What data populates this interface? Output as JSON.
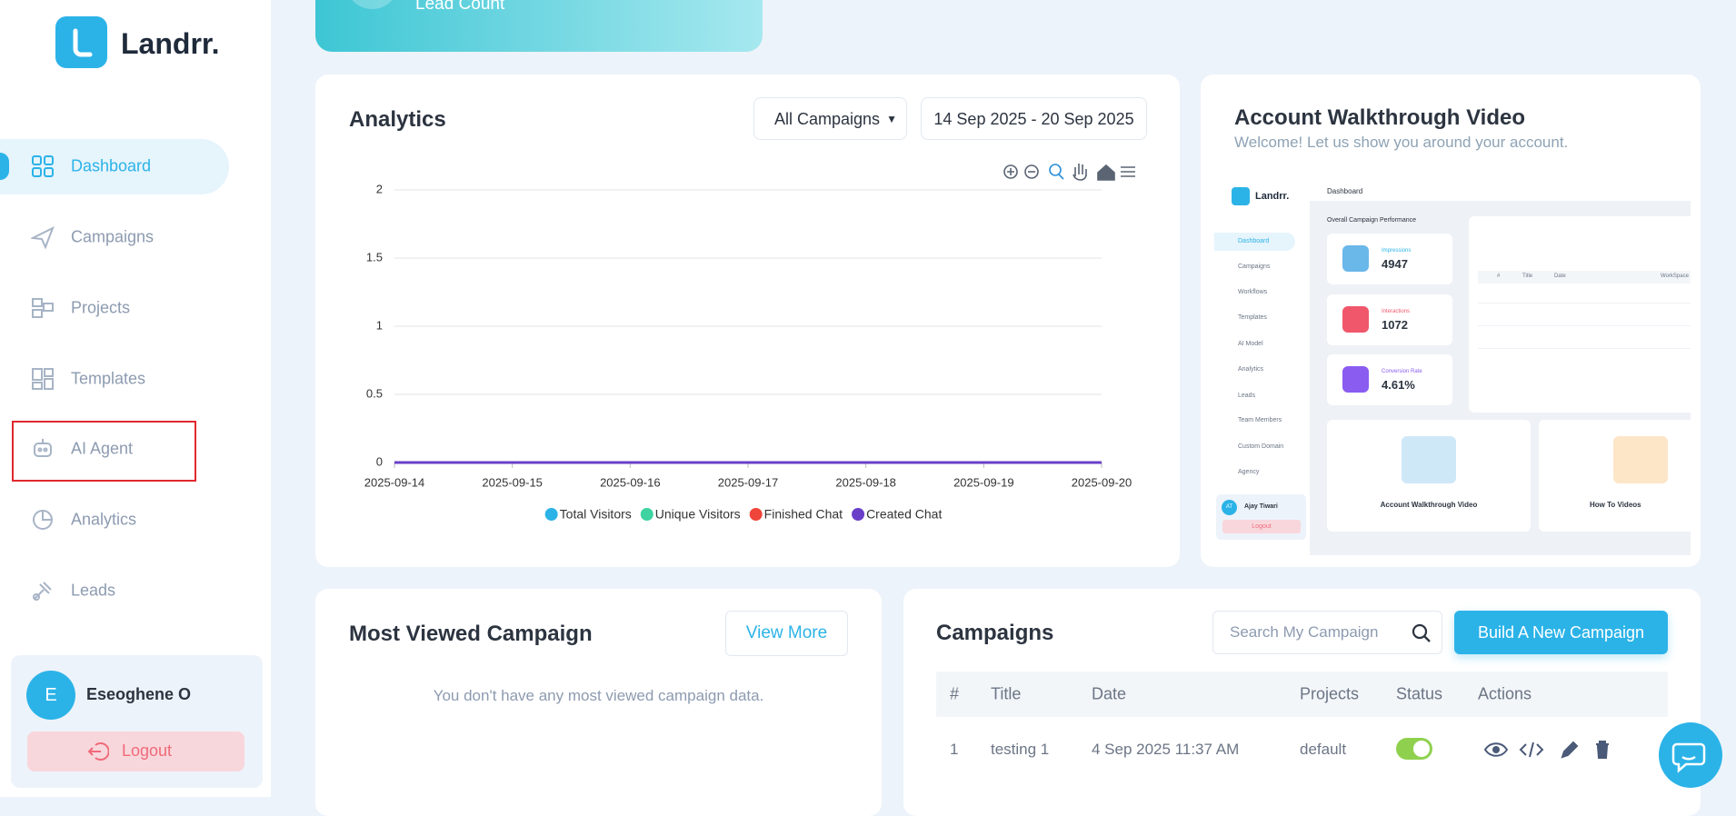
{
  "brand": "Landrr.",
  "banner": "Lead Count",
  "sidebar": {
    "nav": [
      "Dashboard",
      "Campaigns",
      "Projects",
      "Templates",
      "AI Agent",
      "Analytics",
      "Leads"
    ],
    "user": {
      "initial": "E",
      "name": "Eseoghene O"
    },
    "logout": "Logout"
  },
  "analytics": {
    "title": "Analytics",
    "filter": "All Campaigns",
    "date_range": "14 Sep 2025 - 20 Sep 2025",
    "chart": {
      "type": "line",
      "x": [
        "2025-09-14",
        "2025-09-15",
        "2025-09-16",
        "2025-09-17",
        "2025-09-18",
        "2025-09-19",
        "2025-09-20"
      ],
      "series": [
        {
          "name": "Total Visitors",
          "color": "#2bb3e8",
          "values": [
            0,
            0,
            0,
            0,
            0,
            0,
            0
          ]
        },
        {
          "name": "Unique Visitors",
          "color": "#3ed3a0",
          "values": [
            0,
            0,
            0,
            0,
            0,
            0,
            0
          ]
        },
        {
          "name": "Finished Chat",
          "color": "#f0453a",
          "values": [
            0,
            0,
            0,
            0,
            0,
            0,
            0
          ]
        },
        {
          "name": "Created Chat",
          "color": "#6a3fc8",
          "values": [
            0,
            0,
            0,
            0,
            0,
            0,
            0
          ]
        }
      ],
      "ylim": [
        0,
        2
      ],
      "yticks": [
        0,
        0.5,
        1,
        1.5,
        2
      ],
      "grid": true
    }
  },
  "walkthrough": {
    "title": "Account Walkthrough Video",
    "subtitle": "Welcome! Let us show you around your account.",
    "preview": {
      "brand": "Landrr.",
      "heading": "Dashboard",
      "section": "Overall Campaign Performance",
      "nav": [
        "Dashboard",
        "Campaigns",
        "Workflows",
        "Templates",
        "AI Model",
        "Analytics",
        "Leads",
        "Team Members",
        "Custom Domain",
        "Agency"
      ],
      "stats": [
        {
          "label": "Impressions",
          "value": "4947"
        },
        {
          "label": "Interactions",
          "value": "1072"
        },
        {
          "label": "Conversion Rate",
          "value": "4.61%"
        }
      ],
      "table_header": [
        "#",
        "Title",
        "Date",
        "WorkSpace"
      ],
      "user": {
        "initials": "AT",
        "name": "Ajay Tiwari"
      },
      "logout": "Logout",
      "cards": [
        "Account Walkthrough Video",
        "How To Videos"
      ]
    }
  },
  "most_viewed": {
    "title": "Most Viewed Campaign",
    "button": "View More",
    "empty": "You don't have any most viewed campaign data."
  },
  "campaigns": {
    "title": "Campaigns",
    "search_placeholder": "Search My Campaign",
    "button": "Build A New Campaign",
    "columns": [
      "#",
      "Title",
      "Date",
      "Projects",
      "Status",
      "Actions"
    ],
    "rows": [
      [
        "1",
        "testing 1",
        "4 Sep 2025 11:37 AM",
        "default"
      ]
    ]
  }
}
